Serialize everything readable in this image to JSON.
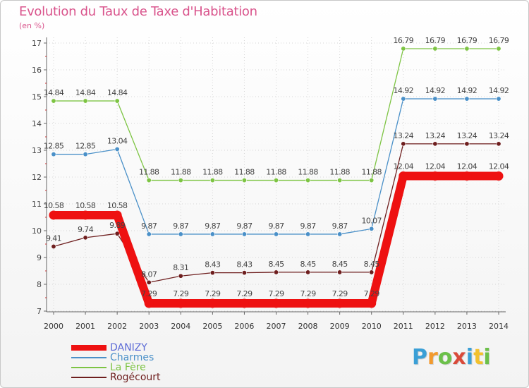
{
  "title": "Evolution du Taux de Taxe d'Habitation",
  "subtitle": "(en %)",
  "logo": {
    "text": "Proxiti",
    "colors": [
      "#3a9fd6",
      "#f29a2e",
      "#6cc04a",
      "#d94a3a",
      "#3a9fd6",
      "#f2c12e",
      "#6cc04a"
    ]
  },
  "chart_data": {
    "type": "line",
    "x": [
      2000,
      2001,
      2002,
      2003,
      2004,
      2005,
      2006,
      2007,
      2008,
      2009,
      2010,
      2011,
      2012,
      2013,
      2014
    ],
    "ylim": [
      7,
      17
    ],
    "yticks": [
      7,
      8,
      9,
      10,
      11,
      12,
      13,
      14,
      15,
      16,
      17
    ],
    "legend_position": "bottom-left",
    "series": [
      {
        "name": "DANIZY",
        "color": "#ee1111",
        "values": [
          10.58,
          10.58,
          10.58,
          7.29,
          7.29,
          7.29,
          7.29,
          7.29,
          7.29,
          7.29,
          7.29,
          12.04,
          12.04,
          12.04,
          12.04
        ],
        "labels": [
          "10.58",
          "10.58",
          "10.58",
          "7.29",
          "7.29",
          "7.29",
          "7.29",
          "7.29",
          "7.29",
          "7.29",
          "7.29",
          "12.04",
          "12.04",
          "12.04",
          "12.04"
        ]
      },
      {
        "name": "Charmes",
        "color": "#4a90c8",
        "values": [
          12.85,
          12.85,
          13.04,
          9.87,
          9.87,
          9.87,
          9.87,
          9.87,
          9.87,
          9.87,
          10.07,
          14.92,
          14.92,
          14.92,
          14.92
        ],
        "labels": [
          "12.85",
          "12.85",
          "13.04",
          "9.87",
          "9.87",
          "9.87",
          "9.87",
          "9.87",
          "9.87",
          "9.87",
          "10.07",
          "14.92",
          "14.92",
          "14.92",
          "14.92"
        ]
      },
      {
        "name": "La Fère",
        "color": "#7dc443",
        "values": [
          14.84,
          14.84,
          14.84,
          11.88,
          11.88,
          11.88,
          11.88,
          11.88,
          11.88,
          11.88,
          11.88,
          16.79,
          16.79,
          16.79,
          16.79
        ],
        "labels": [
          "14.84",
          "14.84",
          "14.84",
          "11.88",
          "11.88",
          "11.88",
          "11.88",
          "11.88",
          "11.88",
          "11.88",
          "11.88",
          "16.79",
          "16.79",
          "16.79",
          "16.79"
        ]
      },
      {
        "name": "Rogécourt",
        "color": "#6e1e1e",
        "values": [
          9.41,
          9.74,
          9.89,
          8.07,
          8.31,
          8.43,
          8.43,
          8.45,
          8.45,
          8.45,
          8.45,
          13.24,
          13.24,
          13.24,
          13.24
        ],
        "labels": [
          "9.41",
          "9.74",
          "9.89",
          "8.07",
          "8.31",
          "8.43",
          "8.43",
          "8.45",
          "8.45",
          "8.45",
          "8.45",
          "13.24",
          "13.24",
          "13.24",
          "13.24"
        ]
      }
    ]
  }
}
